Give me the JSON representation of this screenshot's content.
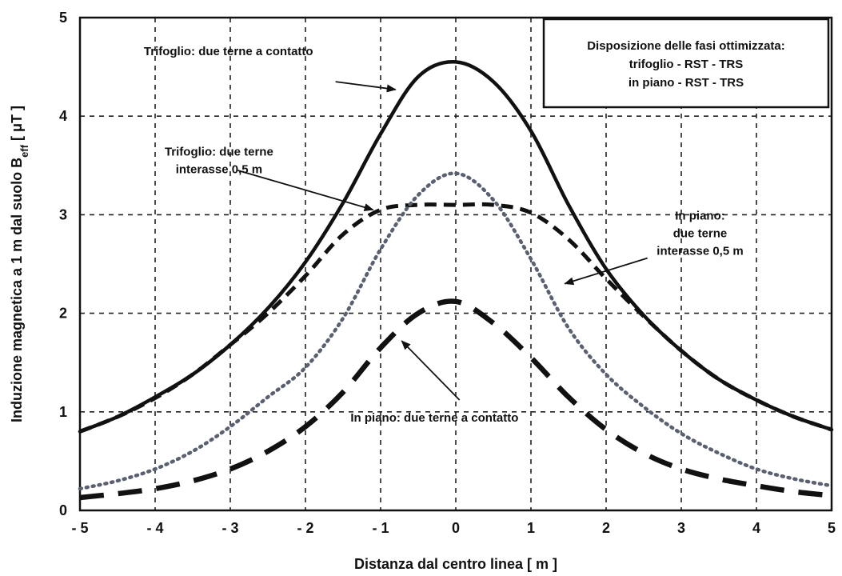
{
  "chart_data": {
    "type": "line",
    "xlabel": "Distanza dal centro linea [ m ]",
    "ylabel_main": "Induzione magnetica a 1 m dal suolo B",
    "ylabel_sub": "eff",
    "ylabel_unit": " [ μT ]",
    "xlim": [
      -5,
      5
    ],
    "ylim": [
      0,
      5
    ],
    "xticks": [
      -5,
      -4,
      -3,
      -2,
      -1,
      0,
      1,
      2,
      3,
      4,
      5
    ],
    "xtick_labels": [
      "- 5",
      "- 4",
      "- 3",
      "- 2",
      "- 1",
      "0",
      "1",
      "2",
      "3",
      "4",
      "5"
    ],
    "yticks": [
      0,
      1,
      2,
      3,
      4,
      5
    ],
    "ytick_labels": [
      "0",
      "1",
      "2",
      "3",
      "4",
      "5"
    ],
    "grid": true,
    "legend_box": {
      "placement": "top-right",
      "lines": [
        "Disposizione delle fasi ottimizzata:",
        "trifoglio - RST - TRS",
        "in piano - RST - TRS"
      ]
    },
    "series": [
      {
        "style": "solid",
        "x": [
          -5,
          -4.5,
          -4,
          -3.5,
          -3,
          -2.5,
          -2,
          -1.5,
          -1,
          -0.5,
          0,
          0.5,
          1,
          1.5,
          2,
          2.5,
          3,
          3.5,
          4,
          4.5,
          5
        ],
        "y": [
          0.8,
          0.95,
          1.15,
          1.38,
          1.68,
          2.05,
          2.52,
          3.12,
          3.82,
          4.4,
          4.55,
          4.35,
          3.85,
          3.1,
          2.45,
          1.98,
          1.62,
          1.33,
          1.12,
          0.95,
          0.82
        ]
      },
      {
        "style": "dashed",
        "x": [
          -5,
          -4.5,
          -4,
          -3.5,
          -3,
          -2.5,
          -2,
          -1.5,
          -1,
          -0.5,
          0,
          0.5,
          1,
          1.5,
          2,
          2.5,
          3,
          3.5,
          4,
          4.5,
          5
        ],
        "y": [
          0.8,
          0.95,
          1.14,
          1.38,
          1.68,
          2.0,
          2.38,
          2.8,
          3.05,
          3.1,
          3.1,
          3.1,
          3.02,
          2.75,
          2.35,
          1.97,
          1.62,
          1.33,
          1.12,
          0.95,
          0.82
        ]
      },
      {
        "style": "dotted",
        "x": [
          -5,
          -4.5,
          -4,
          -3.5,
          -3,
          -2.5,
          -2,
          -1.5,
          -1,
          -0.5,
          0,
          0.5,
          1,
          1.5,
          2,
          2.5,
          3,
          3.5,
          4,
          4.5,
          5
        ],
        "y": [
          0.22,
          0.3,
          0.42,
          0.6,
          0.85,
          1.15,
          1.45,
          1.95,
          2.65,
          3.2,
          3.42,
          3.15,
          2.55,
          1.85,
          1.38,
          1.05,
          0.78,
          0.58,
          0.42,
          0.32,
          0.25
        ]
      },
      {
        "style": "long-dashed",
        "x": [
          -5,
          -4.5,
          -4,
          -3.5,
          -3,
          -2.5,
          -2,
          -1.5,
          -1,
          -0.5,
          0,
          0.5,
          1,
          1.5,
          2,
          2.5,
          3,
          3.5,
          4,
          4.5,
          5
        ],
        "y": [
          0.13,
          0.17,
          0.22,
          0.3,
          0.42,
          0.6,
          0.85,
          1.2,
          1.65,
          2.0,
          2.12,
          1.9,
          1.55,
          1.15,
          0.82,
          0.58,
          0.42,
          0.32,
          0.25,
          0.19,
          0.15
        ]
      }
    ],
    "annotations": [
      {
        "lines": [
          "Trifoglio: due terne a contatto"
        ],
        "text_at": [
          -4.15,
          4.62
        ],
        "align": "start",
        "arrow_from": [
          -1.6,
          4.35
        ],
        "arrow_to": [
          -0.8,
          4.27
        ]
      },
      {
        "lines": [
          "Trifoglio: due terne",
          "interasse 0,5 m"
        ],
        "text_at": [
          -3.15,
          3.6
        ],
        "align": "middle",
        "arrow_from": [
          -2.9,
          3.45
        ],
        "arrow_to": [
          -1.1,
          3.05
        ]
      },
      {
        "lines": [
          "In piano:",
          "due terne",
          "interasse 0,5 m"
        ],
        "text_at": [
          3.25,
          2.95
        ],
        "align": "middle",
        "arrow_from": [
          2.55,
          2.56
        ],
        "arrow_to": [
          1.45,
          2.3
        ]
      },
      {
        "lines": [
          "In piano: due terne a contatto"
        ],
        "text_at": [
          -1.4,
          0.9
        ],
        "align": "start",
        "arrow_from": [
          0.05,
          1.12
        ],
        "arrow_to": [
          -0.72,
          1.72
        ]
      }
    ]
  }
}
